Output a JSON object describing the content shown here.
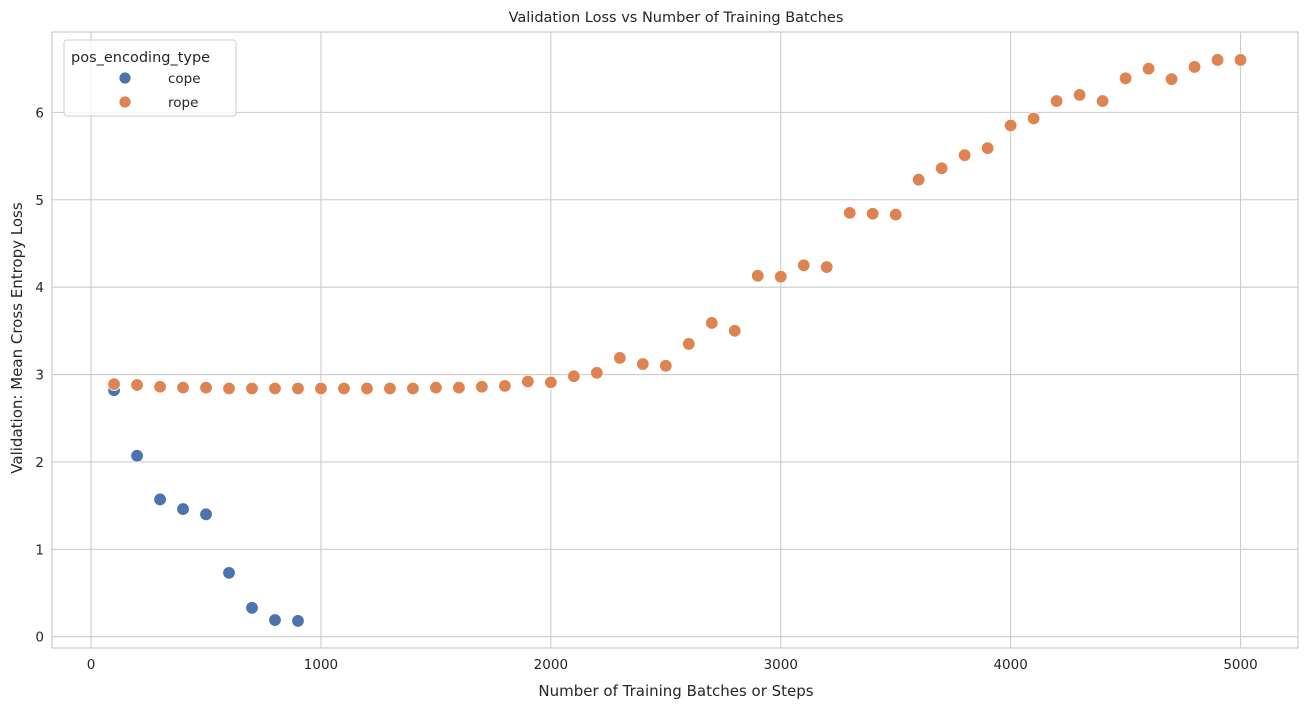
{
  "chart_data": {
    "type": "scatter",
    "title": "Validation Loss vs Number of Training Batches",
    "xlabel": "Number of Training Batches or Steps",
    "ylabel": "Validation: Mean Cross Entropy Loss",
    "xlim": [
      -170,
      5250
    ],
    "ylim": [
      -0.13,
      6.92
    ],
    "xticks": [
      0,
      1000,
      2000,
      3000,
      4000,
      5000
    ],
    "yticks": [
      0,
      1,
      2,
      3,
      4,
      5,
      6
    ],
    "grid": true,
    "legend": {
      "title": "pos_encoding_type",
      "placement": "top-left"
    },
    "series": [
      {
        "name": "cope",
        "color": "#4c72b0",
        "x": [
          100,
          200,
          300,
          400,
          500,
          600,
          700,
          800,
          900
        ],
        "y": [
          2.82,
          2.07,
          1.57,
          1.46,
          1.4,
          0.73,
          0.33,
          0.19,
          0.18
        ]
      },
      {
        "name": "rope",
        "color": "#dd8452",
        "x": [
          100,
          200,
          300,
          400,
          500,
          600,
          700,
          800,
          900,
          1000,
          1100,
          1200,
          1300,
          1400,
          1500,
          1600,
          1700,
          1800,
          1900,
          2000,
          2100,
          2200,
          2300,
          2400,
          2500,
          2600,
          2700,
          2800,
          2900,
          3000,
          3100,
          3200,
          3300,
          3400,
          3500,
          3600,
          3700,
          3800,
          3900,
          4000,
          4100,
          4200,
          4300,
          4400,
          4500,
          4600,
          4700,
          4800,
          4900,
          5000
        ],
        "y": [
          2.89,
          2.88,
          2.86,
          2.85,
          2.85,
          2.84,
          2.84,
          2.84,
          2.84,
          2.84,
          2.84,
          2.84,
          2.84,
          2.84,
          2.85,
          2.85,
          2.86,
          2.87,
          2.92,
          2.91,
          2.98,
          3.02,
          3.19,
          3.12,
          3.1,
          3.35,
          3.59,
          3.5,
          4.13,
          4.12,
          4.25,
          4.23,
          4.85,
          4.84,
          4.83,
          5.23,
          5.36,
          5.51,
          5.59,
          5.85,
          5.93,
          6.13,
          6.2,
          6.13,
          6.39,
          6.5,
          6.38,
          6.52,
          6.6,
          6.6
        ]
      }
    ]
  }
}
